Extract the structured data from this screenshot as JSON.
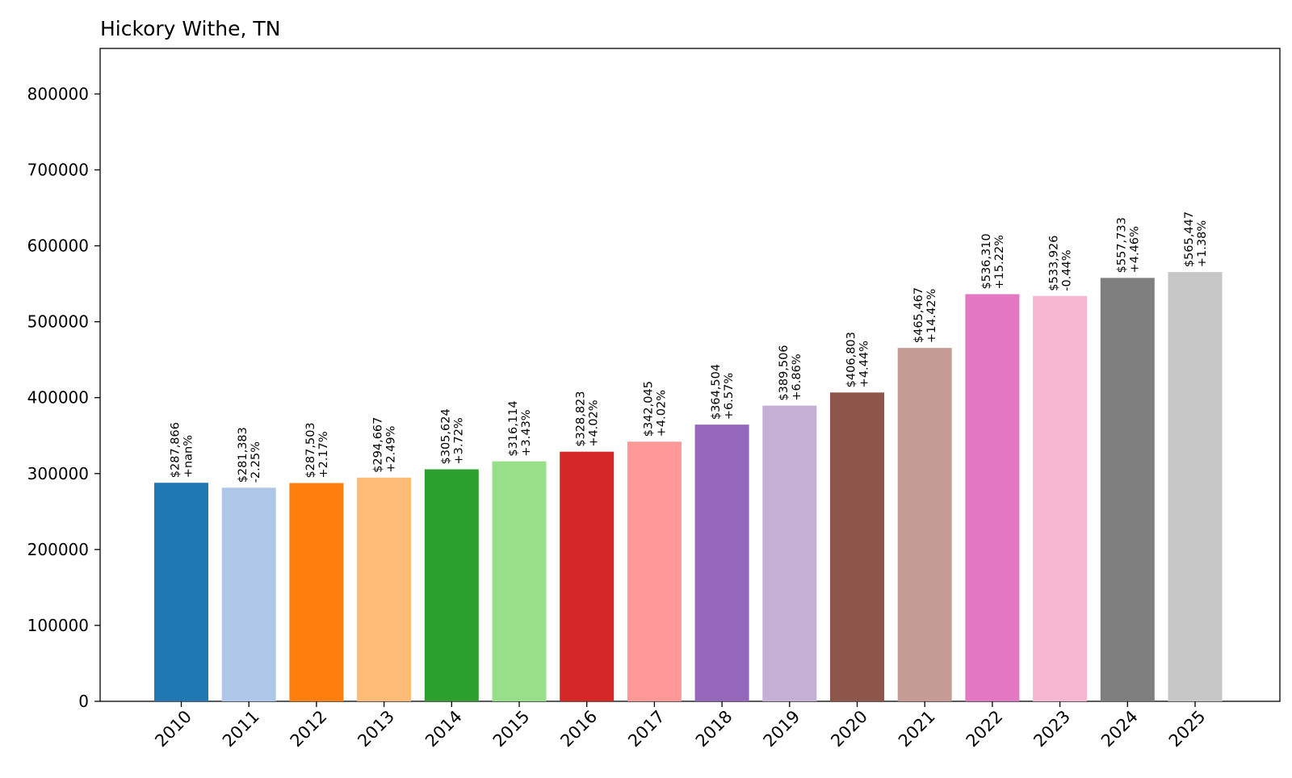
{
  "chart_data": {
    "type": "bar",
    "title": "Hickory Withe, TN",
    "xlabel": "",
    "ylabel": "",
    "ylim": [
      0,
      860000
    ],
    "y_ticks": [
      0,
      100000,
      200000,
      300000,
      400000,
      500000,
      600000,
      700000,
      800000
    ],
    "y_tick_labels": [
      "0",
      "100000",
      "200000",
      "300000",
      "400000",
      "500000",
      "600000",
      "700000",
      "800000"
    ],
    "categories": [
      "2010",
      "2011",
      "2012",
      "2013",
      "2014",
      "2015",
      "2016",
      "2017",
      "2018",
      "2019",
      "2020",
      "2021",
      "2022",
      "2023",
      "2024",
      "2025"
    ],
    "values": [
      287866,
      281383,
      287503,
      294667,
      305624,
      316114,
      328823,
      342045,
      364504,
      389506,
      406803,
      465467,
      536310,
      533926,
      557733,
      565447
    ],
    "value_labels": [
      "$287,866",
      "$281,383",
      "$287,503",
      "$294,667",
      "$305,624",
      "$316,114",
      "$328,823",
      "$342,045",
      "$364,504",
      "$389,506",
      "$406,803",
      "$465,467",
      "$536,310",
      "$533,926",
      "$557,733",
      "$565,447"
    ],
    "change_labels": [
      "+nan%",
      "-2.25%",
      "+2.17%",
      "+2.49%",
      "+3.72%",
      "+3.43%",
      "+4.02%",
      "+4.02%",
      "+6.57%",
      "+6.86%",
      "+4.44%",
      "+14.42%",
      "+15.22%",
      "-0.44%",
      "+4.46%",
      "+1.38%"
    ],
    "colors": [
      "#1f77b4",
      "#aec7e8",
      "#ff7f0e",
      "#ffbb78",
      "#2ca02c",
      "#98df8a",
      "#d62728",
      "#ff9896",
      "#9467bd",
      "#c5b0d5",
      "#8c564b",
      "#c49c94",
      "#e377c2",
      "#f7b6d2",
      "#7f7f7f",
      "#c7c7c7"
    ],
    "grid": false,
    "legend": "none"
  }
}
